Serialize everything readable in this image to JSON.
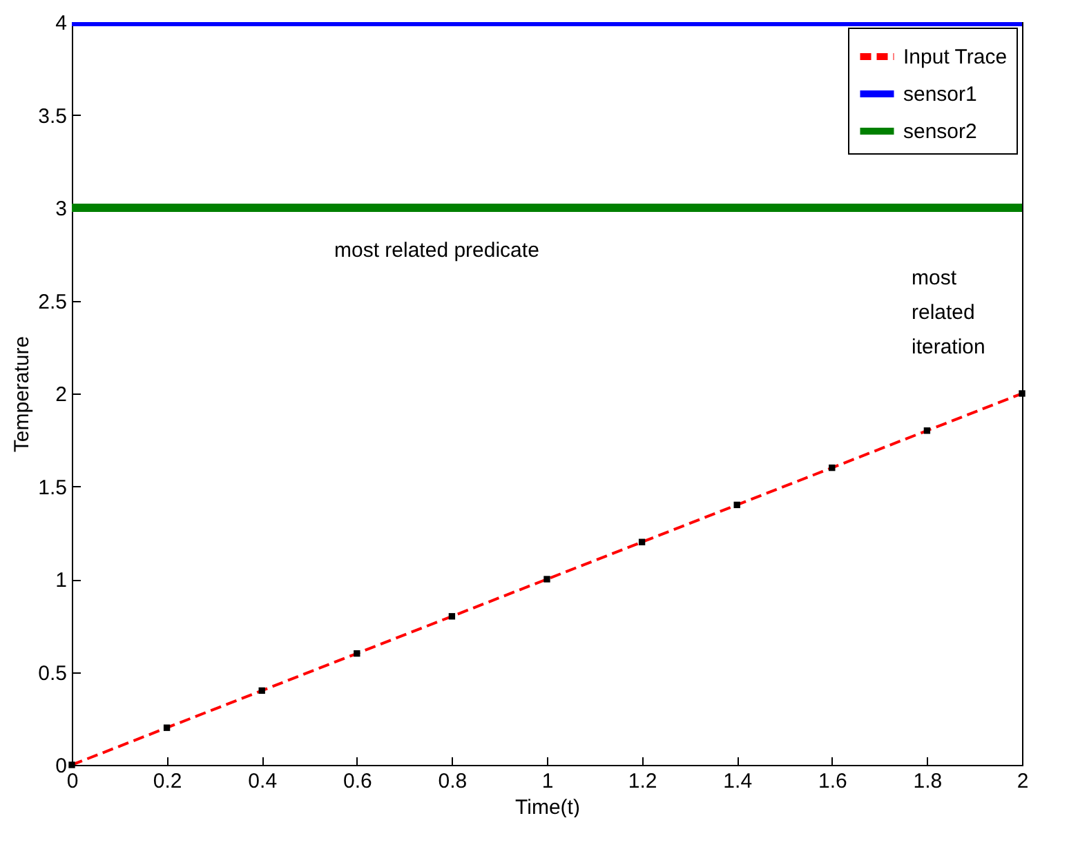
{
  "chart_data": {
    "type": "line",
    "xlabel": "Time(t)",
    "ylabel": "Temperature",
    "xlim": [
      0,
      2
    ],
    "ylim": [
      0,
      4
    ],
    "xticks": [
      0,
      0.2,
      0.4,
      0.6,
      0.8,
      1,
      1.2,
      1.4,
      1.6,
      1.8,
      2
    ],
    "yticks": [
      0,
      0.5,
      1,
      1.5,
      2,
      2.5,
      3,
      3.5,
      4
    ],
    "legend": "top right",
    "annotations": [
      "most related predicate",
      "most\nrelated\niteration"
    ],
    "series": [
      {
        "name": "Input Trace",
        "color": "#ff0000",
        "line_style": "dashed",
        "marker": "square",
        "x": [
          0,
          0.2,
          0.4,
          0.6,
          0.8,
          1,
          1.2,
          1.4,
          1.6,
          1.8,
          2
        ],
        "values": [
          0,
          0.2,
          0.4,
          0.6,
          0.8,
          1,
          1.2,
          1.4,
          1.6,
          1.8,
          2
        ]
      },
      {
        "name": "sensor1",
        "color": "#0000ff",
        "line_style": "solid",
        "x": [
          0,
          2
        ],
        "values": [
          4,
          4
        ]
      },
      {
        "name": "sensor2",
        "color": "#008000",
        "line_style": "solid",
        "x": [
          0,
          2
        ],
        "values": [
          3,
          3
        ]
      }
    ]
  }
}
